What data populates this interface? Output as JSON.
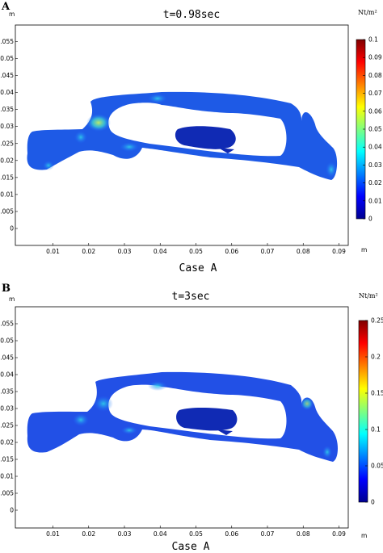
{
  "panels": [
    {
      "letter": "A",
      "title": "t=0.98sec",
      "caption": "Case A",
      "colorbar": {
        "unit": "Nt/m²",
        "min": 0,
        "max": 0.1,
        "ticks": [
          "0",
          "0.01",
          "0.02",
          "0.03",
          "0.04",
          "0.05",
          "0.06",
          "0.07",
          "0.08",
          "0.09",
          "0.1"
        ]
      }
    },
    {
      "letter": "B",
      "title": "t=3sec",
      "caption": "Case A",
      "colorbar": {
        "unit": "Nt/m²",
        "min": 0,
        "max": 0.25,
        "ticks": [
          "0",
          "0.05",
          "0.1",
          "0.15",
          "0.2",
          "0.25"
        ]
      }
    }
  ],
  "chart_data": [
    {
      "type": "heatmap",
      "title": "t=0.98sec",
      "xlabel": "m",
      "ylabel": "m",
      "xlim": [
        0.002,
        0.09
      ],
      "ylim": [
        -0.007,
        0.055
      ],
      "xticks": [
        "0.01",
        "0.02",
        "0.03",
        "0.04",
        "0.05",
        "0.06",
        "0.07",
        "0.08",
        "0.09"
      ],
      "yticks": [
        "0",
        "0.005",
        "0.01",
        "0.015",
        "0.02",
        "0.025",
        "0.03",
        "0.035",
        "0.04",
        "0.045",
        "0.05",
        "0.055"
      ],
      "colormap": "jet",
      "colorbar": {
        "label": "Nt/m²",
        "min": 0,
        "max": 0.1
      },
      "caption": "Case A"
    },
    {
      "type": "heatmap",
      "title": "t=3sec",
      "xlabel": "m",
      "ylabel": "m",
      "xlim": [
        0.002,
        0.09
      ],
      "ylim": [
        -0.007,
        0.055
      ],
      "xticks": [
        "0.01",
        "0.02",
        "0.03",
        "0.04",
        "0.05",
        "0.06",
        "0.07",
        "0.08",
        "0.09"
      ],
      "yticks": [
        "0",
        "0.005",
        "0.01",
        "0.015",
        "0.02",
        "0.025",
        "0.03",
        "0.035",
        "0.04",
        "0.045",
        "0.05",
        "0.055"
      ],
      "colormap": "jet",
      "colorbar": {
        "label": "Nt/m²",
        "min": 0,
        "max": 0.25
      },
      "caption": "Case A"
    }
  ]
}
